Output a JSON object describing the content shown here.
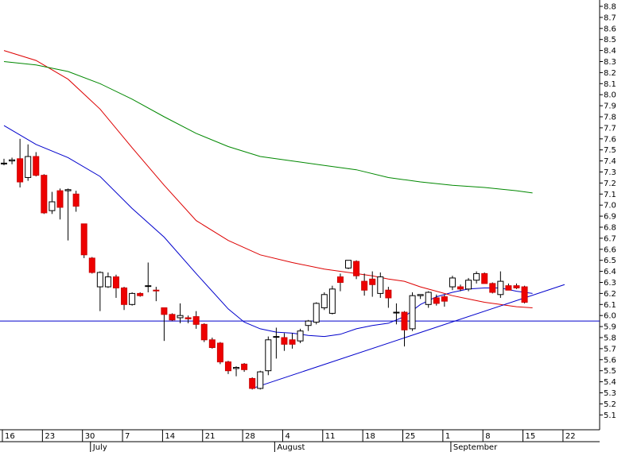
{
  "chart_data": {
    "type": "candlestick",
    "title": "",
    "xlabel": "",
    "ylabel": "",
    "ylim": [
      5.0,
      8.9
    ],
    "yticks": [
      5.1,
      5.2,
      5.3,
      5.4,
      5.5,
      5.6,
      5.7,
      5.8,
      5.9,
      6.0,
      6.1,
      6.2,
      6.3,
      6.4,
      6.5,
      6.6,
      6.7,
      6.8,
      6.9,
      7.0,
      7.1,
      7.2,
      7.3,
      7.4,
      7.5,
      7.6,
      7.7,
      7.8,
      7.9,
      8.0,
      8.1,
      8.2,
      8.3,
      8.4,
      8.5,
      8.6,
      8.7,
      8.8
    ],
    "grid": false,
    "x_axis": {
      "day_labels": [
        "16",
        "23",
        "30",
        "7",
        "14",
        "21",
        "28",
        "4",
        "11",
        "18",
        "25",
        "1",
        "8",
        "15",
        "22"
      ],
      "month_labels": [
        "July",
        "August",
        "September"
      ]
    },
    "candles": [
      {
        "o": 7.38,
        "h": 7.42,
        "l": 7.36,
        "c": 7.38,
        "dir": "up"
      },
      {
        "o": 7.4,
        "h": 7.43,
        "l": 7.37,
        "c": 7.41,
        "dir": "up"
      },
      {
        "o": 7.42,
        "h": 7.6,
        "l": 7.16,
        "c": 7.21,
        "dir": "down"
      },
      {
        "o": 7.25,
        "h": 7.55,
        "l": 7.22,
        "c": 7.44,
        "dir": "up"
      },
      {
        "o": 7.44,
        "h": 7.48,
        "l": 7.26,
        "c": 7.27,
        "dir": "down"
      },
      {
        "o": 7.27,
        "h": 7.28,
        "l": 6.92,
        "c": 6.93,
        "dir": "down"
      },
      {
        "o": 6.95,
        "h": 7.12,
        "l": 6.92,
        "c": 7.03,
        "dir": "up"
      },
      {
        "o": 7.13,
        "h": 7.15,
        "l": 6.87,
        "c": 6.98,
        "dir": "down"
      },
      {
        "o": 7.14,
        "h": 7.15,
        "l": 6.68,
        "c": 7.13,
        "dir": "up"
      },
      {
        "o": 7.1,
        "h": 7.13,
        "l": 6.94,
        "c": 6.99,
        "dir": "down"
      },
      {
        "o": 6.83,
        "h": 6.83,
        "l": 6.52,
        "c": 6.55,
        "dir": "down"
      },
      {
        "o": 6.52,
        "h": 6.53,
        "l": 6.38,
        "c": 6.39,
        "dir": "down"
      },
      {
        "o": 6.39,
        "h": 6.4,
        "l": 6.04,
        "c": 6.26,
        "dir": "up"
      },
      {
        "o": 6.26,
        "h": 6.39,
        "l": 6.25,
        "c": 6.35,
        "dir": "up"
      },
      {
        "o": 6.35,
        "h": 6.37,
        "l": 6.16,
        "c": 6.25,
        "dir": "down"
      },
      {
        "o": 6.25,
        "h": 6.26,
        "l": 6.05,
        "c": 6.1,
        "dir": "down"
      },
      {
        "o": 6.1,
        "h": 6.21,
        "l": 6.09,
        "c": 6.2,
        "dir": "up"
      },
      {
        "o": 6.2,
        "h": 6.21,
        "l": 6.17,
        "c": 6.18,
        "dir": "down"
      },
      {
        "o": 6.27,
        "h": 6.48,
        "l": 6.21,
        "c": 6.27,
        "dir": "up"
      },
      {
        "o": 6.23,
        "h": 6.26,
        "l": 6.13,
        "c": 6.23,
        "dir": "down"
      },
      {
        "o": 6.07,
        "h": 6.07,
        "l": 5.77,
        "c": 6.01,
        "dir": "down"
      },
      {
        "o": 6.01,
        "h": 6.02,
        "l": 5.95,
        "c": 5.96,
        "dir": "down"
      },
      {
        "o": 5.98,
        "h": 6.11,
        "l": 5.93,
        "c": 6.0,
        "dir": "up"
      },
      {
        "o": 5.98,
        "h": 6.0,
        "l": 5.93,
        "c": 5.97,
        "dir": "down"
      },
      {
        "o": 5.99,
        "h": 6.04,
        "l": 5.88,
        "c": 5.92,
        "dir": "down"
      },
      {
        "o": 5.92,
        "h": 5.93,
        "l": 5.76,
        "c": 5.78,
        "dir": "down"
      },
      {
        "o": 5.78,
        "h": 5.8,
        "l": 5.7,
        "c": 5.71,
        "dir": "down"
      },
      {
        "o": 5.75,
        "h": 5.76,
        "l": 5.56,
        "c": 5.58,
        "dir": "down"
      },
      {
        "o": 5.58,
        "h": 5.59,
        "l": 5.47,
        "c": 5.5,
        "dir": "down"
      },
      {
        "o": 5.52,
        "h": 5.54,
        "l": 5.45,
        "c": 5.53,
        "dir": "up"
      },
      {
        "o": 5.56,
        "h": 5.57,
        "l": 5.49,
        "c": 5.51,
        "dir": "down"
      },
      {
        "o": 5.43,
        "h": 5.44,
        "l": 5.33,
        "c": 5.34,
        "dir": "down"
      },
      {
        "o": 5.34,
        "h": 5.5,
        "l": 5.33,
        "c": 5.49,
        "dir": "up"
      },
      {
        "o": 5.5,
        "h": 5.81,
        "l": 5.46,
        "c": 5.78,
        "dir": "up"
      },
      {
        "o": 5.81,
        "h": 5.89,
        "l": 5.61,
        "c": 5.81,
        "dir": "up"
      },
      {
        "o": 5.8,
        "h": 5.84,
        "l": 5.68,
        "c": 5.74,
        "dir": "down"
      },
      {
        "o": 5.78,
        "h": 5.84,
        "l": 5.7,
        "c": 5.74,
        "dir": "down"
      },
      {
        "o": 5.77,
        "h": 5.88,
        "l": 5.75,
        "c": 5.86,
        "dir": "up"
      },
      {
        "o": 5.91,
        "h": 5.96,
        "l": 5.86,
        "c": 5.95,
        "dir": "up"
      },
      {
        "o": 5.94,
        "h": 6.12,
        "l": 5.92,
        "c": 6.11,
        "dir": "up"
      },
      {
        "o": 6.07,
        "h": 6.21,
        "l": 6.05,
        "c": 6.19,
        "dir": "up"
      },
      {
        "o": 6.02,
        "h": 6.27,
        "l": 6.01,
        "c": 6.24,
        "dir": "up"
      },
      {
        "o": 6.3,
        "h": 6.38,
        "l": 6.22,
        "c": 6.35,
        "dir": "down"
      },
      {
        "o": 6.43,
        "h": 6.5,
        "l": 6.42,
        "c": 6.5,
        "dir": "up"
      },
      {
        "o": 6.49,
        "h": 6.5,
        "l": 6.33,
        "c": 6.36,
        "dir": "down"
      },
      {
        "o": 6.31,
        "h": 6.38,
        "l": 6.18,
        "c": 6.23,
        "dir": "down"
      },
      {
        "o": 6.33,
        "h": 6.4,
        "l": 6.17,
        "c": 6.28,
        "dir": "down"
      },
      {
        "o": 6.2,
        "h": 6.39,
        "l": 6.16,
        "c": 6.35,
        "dir": "up"
      },
      {
        "o": 6.23,
        "h": 6.26,
        "l": 6.07,
        "c": 6.16,
        "dir": "down"
      },
      {
        "o": 6.03,
        "h": 6.11,
        "l": 5.92,
        "c": 6.03,
        "dir": "up"
      },
      {
        "o": 6.03,
        "h": 6.04,
        "l": 5.72,
        "c": 5.87,
        "dir": "down"
      },
      {
        "o": 5.88,
        "h": 6.21,
        "l": 5.86,
        "c": 6.18,
        "dir": "up"
      },
      {
        "o": 6.18,
        "h": 6.19,
        "l": 6.15,
        "c": 6.19,
        "dir": "up"
      },
      {
        "o": 6.1,
        "h": 6.22,
        "l": 6.07,
        "c": 6.21,
        "dir": "up"
      },
      {
        "o": 6.16,
        "h": 6.19,
        "l": 6.09,
        "c": 6.11,
        "dir": "down"
      },
      {
        "o": 6.17,
        "h": 6.19,
        "l": 6.08,
        "c": 6.13,
        "dir": "down"
      },
      {
        "o": 6.26,
        "h": 6.36,
        "l": 6.23,
        "c": 6.34,
        "dir": "up"
      },
      {
        "o": 6.24,
        "h": 6.28,
        "l": 6.22,
        "c": 6.26,
        "dir": "down"
      },
      {
        "o": 6.24,
        "h": 6.34,
        "l": 6.22,
        "c": 6.32,
        "dir": "up"
      },
      {
        "o": 6.32,
        "h": 6.4,
        "l": 6.29,
        "c": 6.38,
        "dir": "up"
      },
      {
        "o": 6.38,
        "h": 6.39,
        "l": 6.29,
        "c": 6.29,
        "dir": "down"
      },
      {
        "o": 6.29,
        "h": 6.3,
        "l": 6.2,
        "c": 6.21,
        "dir": "down"
      },
      {
        "o": 6.19,
        "h": 6.4,
        "l": 6.16,
        "c": 6.31,
        "dir": "up"
      },
      {
        "o": 6.27,
        "h": 6.29,
        "l": 6.23,
        "c": 6.23,
        "dir": "down"
      },
      {
        "o": 6.27,
        "h": 6.29,
        "l": 6.24,
        "c": 6.25,
        "dir": "down"
      },
      {
        "o": 6.26,
        "h": 6.27,
        "l": 6.11,
        "c": 6.12,
        "dir": "down"
      }
    ],
    "series": [
      {
        "line": "blue",
        "color": "#0000cc",
        "points": [
          [
            0,
            7.72
          ],
          [
            4,
            7.55
          ],
          [
            8,
            7.43
          ],
          [
            12,
            7.26
          ],
          [
            16,
            6.97
          ],
          [
            20,
            6.71
          ],
          [
            24,
            6.38
          ],
          [
            28,
            6.06
          ],
          [
            30,
            5.94
          ],
          [
            32,
            5.88
          ],
          [
            34,
            5.85
          ],
          [
            36,
            5.84
          ],
          [
            38,
            5.82
          ],
          [
            40,
            5.81
          ],
          [
            42,
            5.83
          ],
          [
            44,
            5.88
          ],
          [
            46,
            5.91
          ],
          [
            48,
            5.93
          ],
          [
            50,
            5.99
          ],
          [
            52,
            6.1
          ],
          [
            54,
            6.17
          ],
          [
            56,
            6.21
          ],
          [
            58,
            6.24
          ],
          [
            60,
            6.25
          ],
          [
            62,
            6.25
          ],
          [
            64,
            6.22
          ],
          [
            66,
            6.2
          ]
        ]
      },
      {
        "line": "red",
        "color": "#dd0000",
        "points": [
          [
            0,
            8.4
          ],
          [
            4,
            8.31
          ],
          [
            8,
            8.14
          ],
          [
            12,
            7.87
          ],
          [
            16,
            7.52
          ],
          [
            20,
            7.18
          ],
          [
            24,
            6.86
          ],
          [
            28,
            6.68
          ],
          [
            32,
            6.55
          ],
          [
            36,
            6.48
          ],
          [
            40,
            6.42
          ],
          [
            44,
            6.38
          ],
          [
            46,
            6.36
          ],
          [
            48,
            6.33
          ],
          [
            50,
            6.31
          ],
          [
            52,
            6.26
          ],
          [
            54,
            6.22
          ],
          [
            56,
            6.18
          ],
          [
            58,
            6.15
          ],
          [
            60,
            6.12
          ],
          [
            62,
            6.1
          ],
          [
            64,
            6.08
          ],
          [
            66,
            6.07
          ]
        ]
      },
      {
        "line": "green",
        "color": "#008800",
        "points": [
          [
            0,
            8.3
          ],
          [
            4,
            8.27
          ],
          [
            8,
            8.21
          ],
          [
            12,
            8.1
          ],
          [
            16,
            7.96
          ],
          [
            20,
            7.8
          ],
          [
            24,
            7.65
          ],
          [
            28,
            7.53
          ],
          [
            32,
            7.44
          ],
          [
            36,
            7.4
          ],
          [
            40,
            7.36
          ],
          [
            44,
            7.32
          ],
          [
            48,
            7.25
          ],
          [
            52,
            7.21
          ],
          [
            56,
            7.18
          ],
          [
            60,
            7.16
          ],
          [
            64,
            7.13
          ],
          [
            66,
            7.11
          ]
        ]
      }
    ],
    "trendlines": [
      {
        "from": [
          31,
          5.34
        ],
        "to": [
          70,
          6.28
        ],
        "color": "#0000cc"
      }
    ],
    "hlines": [
      {
        "y": 5.95,
        "color": "#0000cc"
      }
    ]
  }
}
